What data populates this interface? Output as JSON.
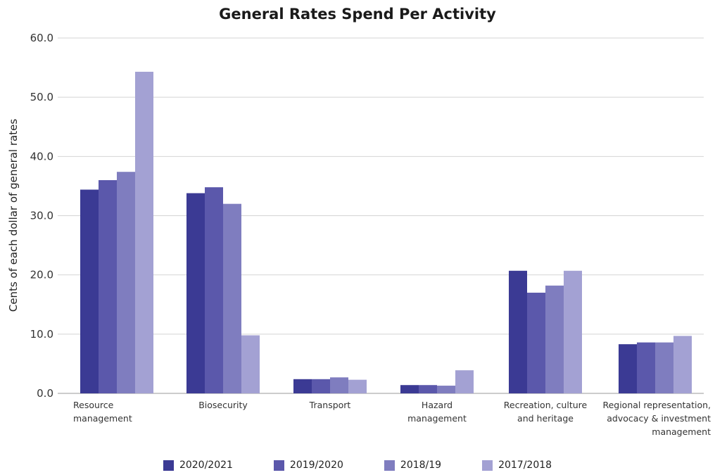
{
  "chart_data": {
    "type": "bar",
    "title": "General Rates Spend Per Activity",
    "xlabel": "",
    "ylabel": "Cents of each dollar of general rates",
    "ylim": [
      0,
      60
    ],
    "yticks": [
      "0.0",
      "10.0",
      "20.0",
      "30.0",
      "40.0",
      "50.0",
      "60.0"
    ],
    "grid": true,
    "legend_position": "bottom",
    "categories": [
      [
        "Resource",
        "management"
      ],
      [
        "Biosecurity"
      ],
      [
        "Transport"
      ],
      [
        "Hazard",
        "management"
      ],
      [
        "Recreation, culture",
        "and heritage"
      ],
      [
        "Regional representation,",
        "advocacy & investment",
        "management"
      ]
    ],
    "series": [
      {
        "name": "2020/2021",
        "color": "#3b3a94",
        "values": [
          34.4,
          33.8,
          2.4,
          1.4,
          20.7,
          8.3
        ]
      },
      {
        "name": "2019/2020",
        "color": "#5b58ab",
        "values": [
          36.0,
          34.8,
          2.4,
          1.4,
          17.0,
          8.6
        ]
      },
      {
        "name": "2018/19",
        "color": "#7f7dbf",
        "values": [
          37.4,
          32.0,
          2.7,
          1.3,
          18.2,
          8.6
        ]
      },
      {
        "name": "2017/2018",
        "color": "#a3a1d3",
        "values": [
          54.3,
          9.8,
          2.3,
          3.9,
          20.7,
          9.7
        ]
      }
    ]
  }
}
